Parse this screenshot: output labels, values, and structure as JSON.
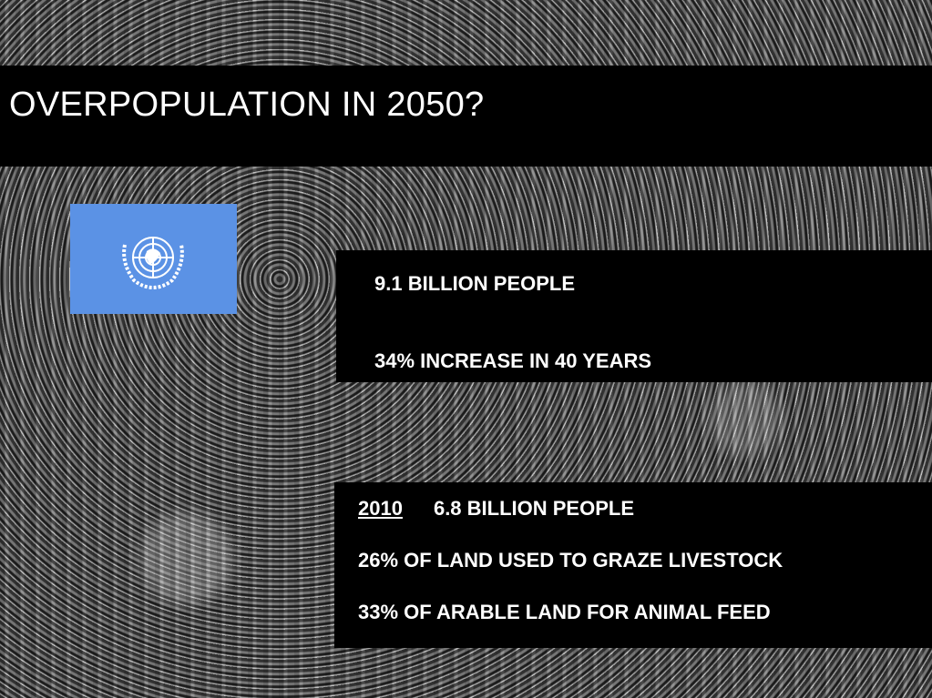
{
  "slide": {
    "title": "OVERPOPULATION IN 2050?",
    "box_2050": {
      "lines": [
        "9.1 BILLION PEOPLE",
        "34% INCREASE IN 40 YEARS"
      ]
    },
    "box_2010": {
      "year": "2010",
      "first_line": "6.8 BILLION PEOPLE",
      "lines": [
        "26% OF LAND USED TO GRAZE LIVESTOCK",
        "33% OF ARABLE LAND FOR ANIMAL FEED"
      ]
    }
  }
}
